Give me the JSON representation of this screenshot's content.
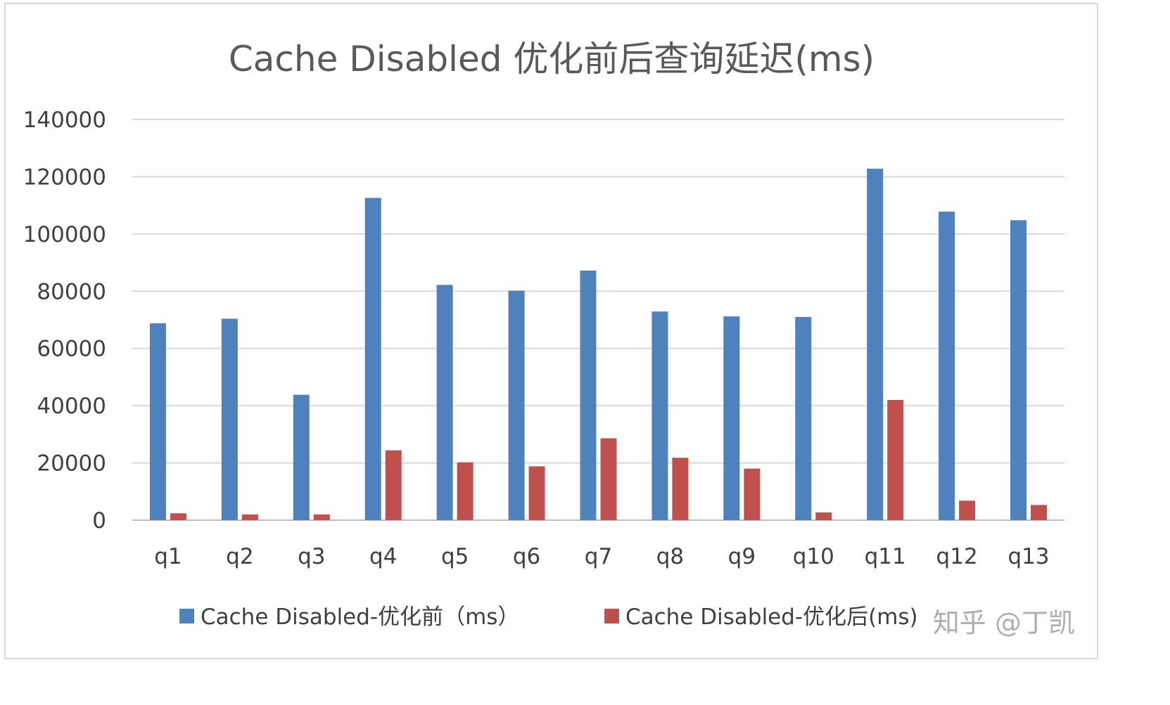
{
  "chart_data": {
    "type": "bar",
    "title": "Cache Disabled 优化前后查询延迟(ms)",
    "xlabel": "",
    "ylabel": "",
    "ylim": [
      0,
      140000
    ],
    "yticks": [
      0,
      20000,
      40000,
      60000,
      80000,
      100000,
      120000,
      140000
    ],
    "grid": true,
    "legend": "bottom",
    "categories": [
      "q1",
      "q2",
      "q3",
      "q4",
      "q5",
      "q6",
      "q7",
      "q8",
      "q9",
      "q10",
      "q11",
      "q12",
      "q13"
    ],
    "series": [
      {
        "name": "Cache Disabled-优化前（ms）",
        "color": "#4f81bd",
        "values": [
          68800,
          70400,
          43800,
          112600,
          82200,
          80200,
          87200,
          72900,
          71200,
          71000,
          122800,
          107800,
          104800
        ]
      },
      {
        "name": "Cache Disabled-优化后(ms)",
        "color": "#c0504d",
        "values": [
          2400,
          2000,
          2000,
          24400,
          20200,
          18800,
          28600,
          21800,
          18000,
          2700,
          42000,
          6800,
          5300
        ]
      }
    ]
  },
  "watermark": "知乎 @丁凯"
}
